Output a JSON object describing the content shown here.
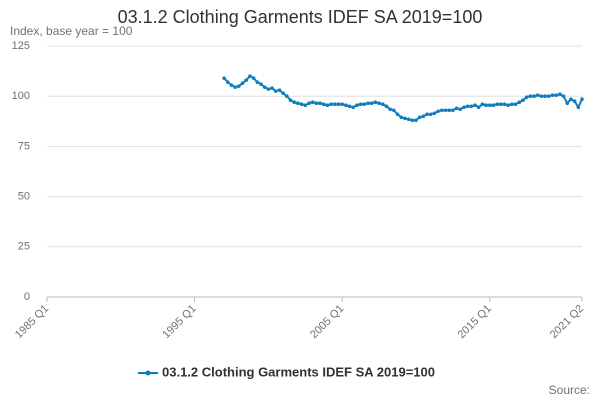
{
  "chart_data": {
    "type": "line",
    "title": "03.1.2 Clothing Garments IDEF SA 2019=100",
    "y_label": "Index, base year = 100",
    "source": "Source:",
    "categories": [
      "1985 Q1",
      null,
      null,
      null,
      null,
      null,
      null,
      null,
      null,
      null,
      null,
      null,
      null,
      null,
      null,
      null,
      null,
      null,
      null,
      null,
      null,
      null,
      null,
      null,
      null,
      null,
      null,
      null,
      null,
      null,
      null,
      null,
      null,
      null,
      null,
      null,
      null,
      null,
      null,
      null,
      "1995 Q1",
      null,
      null,
      null,
      null,
      null,
      null,
      null,
      null,
      null,
      null,
      null,
      null,
      null,
      null,
      null,
      null,
      null,
      null,
      null,
      null,
      null,
      null,
      null,
      null,
      null,
      null,
      null,
      null,
      null,
      null,
      null,
      null,
      null,
      null,
      null,
      null,
      null,
      null,
      null,
      "2005 Q1",
      null,
      null,
      null,
      null,
      null,
      null,
      null,
      null,
      null,
      null,
      null,
      null,
      null,
      null,
      null,
      null,
      null,
      null,
      null,
      null,
      null,
      null,
      null,
      null,
      null,
      null,
      null,
      null,
      null,
      null,
      null,
      null,
      null,
      null,
      null,
      null,
      null,
      null,
      null,
      "2015 Q1",
      null,
      null,
      null,
      null,
      null,
      null,
      null,
      null,
      null,
      null,
      null,
      null,
      null,
      null,
      null,
      null,
      null,
      null,
      null,
      null,
      null,
      null,
      null,
      null,
      "2021 Q2"
    ],
    "series": [
      {
        "name": "03.1.2 Clothing Garments IDEF SA 2019=100",
        "color": "#0f7ebe",
        "values": [
          null,
          null,
          null,
          null,
          null,
          null,
          null,
          null,
          null,
          null,
          null,
          null,
          null,
          null,
          null,
          null,
          null,
          null,
          null,
          null,
          null,
          null,
          null,
          null,
          null,
          null,
          null,
          null,
          null,
          null,
          null,
          null,
          null,
          null,
          null,
          null,
          null,
          null,
          null,
          null,
          null,
          null,
          null,
          null,
          null,
          null,
          null,
          null,
          109,
          107,
          105.5,
          104.5,
          105,
          106.5,
          108,
          110,
          109,
          107,
          106,
          104.5,
          103.5,
          104,
          102.5,
          103,
          101.5,
          100,
          98,
          97,
          96.5,
          96,
          95.5,
          96.5,
          97,
          96.5,
          96.5,
          96,
          95.5,
          96,
          96,
          96,
          96,
          95.5,
          95,
          94.5,
          95.5,
          96,
          96,
          96.5,
          96.5,
          97,
          96.5,
          96,
          95,
          93.5,
          93,
          91,
          89.5,
          89,
          88.5,
          88,
          88,
          89.5,
          90,
          91,
          91,
          91.5,
          92.5,
          93,
          93,
          93,
          93,
          94,
          93.5,
          94.5,
          95,
          95,
          95.5,
          94.5,
          96,
          95.5,
          95.5,
          95.5,
          96,
          96,
          96,
          95.5,
          96,
          96,
          97,
          98,
          99.5,
          100,
          100,
          100.5,
          100,
          100,
          100,
          100.5,
          100.5,
          101,
          100,
          96.5,
          98.5,
          97.5,
          94.5,
          98.5
        ]
      }
    ],
    "ylim": [
      0,
      125
    ],
    "yticks": [
      0,
      25,
      50,
      75,
      100,
      125
    ],
    "grid": true,
    "legend": "bottom"
  }
}
